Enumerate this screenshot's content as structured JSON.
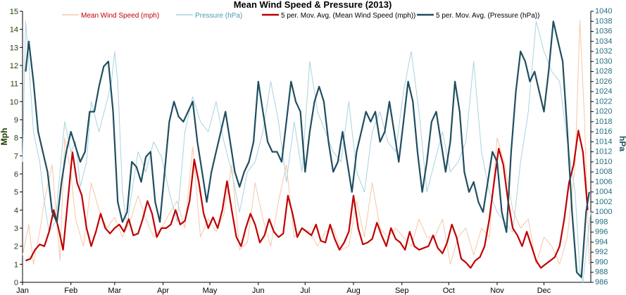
{
  "chart_data": {
    "type": "line",
    "title": "Mean Wind Speed & Pressure (2013)",
    "ylabel": "Mph",
    "y2label": "hPa",
    "ylim": [
      0,
      15
    ],
    "y2lim": [
      986,
      1040
    ],
    "yticks": [
      "0",
      "1",
      "2",
      "3",
      "4",
      "5",
      "6",
      "7",
      "8",
      "9",
      "10",
      "11",
      "12",
      "13",
      "14",
      "15"
    ],
    "y2ticks": [
      "986",
      "988",
      "990",
      "992",
      "994",
      "996",
      "998",
      "1000",
      "1002",
      "1004",
      "1006",
      "1008",
      "1010",
      "1012",
      "1014",
      "1016",
      "1018",
      "1020",
      "1022",
      "1024",
      "1026",
      "1028",
      "1030",
      "1032",
      "1034",
      "1036",
      "1038",
      "1040"
    ],
    "x_domain": [
      1,
      365
    ],
    "xticks": [
      {
        "label": "Jan",
        "day": 1
      },
      {
        "label": "Feb",
        "day": 32
      },
      {
        "label": "Mar",
        "day": 60
      },
      {
        "label": "Apr",
        "day": 91
      },
      {
        "label": "May",
        "day": 121
      },
      {
        "label": "Jun",
        "day": 152
      },
      {
        "label": "Jul",
        "day": 182
      },
      {
        "label": "Aug",
        "day": 213
      },
      {
        "label": "Sep",
        "day": 244
      },
      {
        "label": "Oct",
        "day": 274
      },
      {
        "label": "Nov",
        "day": 305
      },
      {
        "label": "Dec",
        "day": 335
      }
    ],
    "legend_position": "top",
    "series": [
      {
        "name": "Mean Wind Speed (mph)",
        "axis": "left",
        "color": "#f6c7a8",
        "x": [
          1,
          5,
          8,
          12,
          15,
          20,
          25,
          28,
          32,
          35,
          40,
          45,
          50,
          55,
          60,
          65,
          70,
          75,
          80,
          85,
          90,
          95,
          100,
          105,
          110,
          115,
          120,
          125,
          130,
          135,
          140,
          145,
          150,
          155,
          160,
          165,
          170,
          175,
          180,
          185,
          190,
          195,
          200,
          205,
          210,
          215,
          220,
          225,
          230,
          235,
          240,
          245,
          250,
          255,
          260,
          265,
          270,
          275,
          280,
          285,
          290,
          295,
          300,
          305,
          310,
          315,
          320,
          325,
          330,
          335,
          340,
          345,
          350,
          355,
          358,
          361,
          364
        ],
        "values": [
          1.5,
          3.2,
          1.0,
          2.8,
          4.5,
          6.5,
          1.2,
          8.0,
          6.0,
          3.5,
          2.0,
          5.5,
          4.0,
          3.0,
          3.6,
          2.5,
          3.4,
          4.8,
          3.5,
          2.5,
          3.0,
          3.8,
          4.5,
          3.0,
          7.5,
          2.5,
          3.5,
          2.8,
          3.8,
          6.5,
          1.8,
          2.2,
          5.5,
          3.5,
          2.0,
          4.5,
          6.5,
          2.5,
          3.0,
          2.8,
          2.0,
          2.8,
          3.0,
          1.8,
          2.0,
          4.5,
          2.5,
          5.5,
          3.0,
          2.5,
          3.0,
          2.5,
          2.0,
          3.5,
          2.5,
          2.5,
          3.5,
          1.0,
          2.5,
          3.0,
          1.5,
          3.0,
          2.5,
          8.0,
          6.5,
          4.0,
          3.0,
          3.5,
          1.0,
          2.5,
          2.0,
          1.0,
          2.5,
          6.5,
          14.5,
          9.0,
          1.0
        ]
      },
      {
        "name": "Pressure (hPa)",
        "axis": "right",
        "color": "#a9d3e0",
        "x": [
          1,
          3,
          5,
          8,
          12,
          15,
          18,
          22,
          25,
          28,
          32,
          35,
          38,
          42,
          45,
          50,
          55,
          58,
          60,
          62,
          65,
          68,
          70,
          75,
          80,
          85,
          90,
          95,
          100,
          105,
          110,
          115,
          120,
          125,
          130,
          135,
          140,
          145,
          150,
          155,
          160,
          165,
          170,
          175,
          180,
          185,
          190,
          195,
          200,
          205,
          210,
          215,
          220,
          225,
          230,
          235,
          240,
          245,
          250,
          255,
          260,
          265,
          270,
          275,
          280,
          285,
          290,
          295,
          300,
          305,
          310,
          315,
          320,
          325,
          330,
          335,
          340,
          345,
          350,
          355,
          358,
          360,
          362,
          365
        ],
        "values": [
          1010,
          1038,
          1030,
          1016,
          1010,
          1002,
          996,
          998,
          1008,
          1018,
          1012,
          1014,
          1005,
          1010,
          1022,
          1016,
          1022,
          1026,
          1032,
          1026,
          1004,
          997,
          1002,
          1012,
          1008,
          1014,
          1011,
          1004,
          998,
          1016,
          1023,
          1018,
          1016,
          1022,
          1014,
          1008,
          1000,
          1008,
          1010,
          1016,
          1026,
          1018,
          1006,
          1018,
          1008,
          1030,
          1020,
          1016,
          1012,
          1010,
          1022,
          1008,
          1004,
          1016,
          1020,
          1014,
          1012,
          1024,
          1032,
          1020,
          1004,
          1010,
          1016,
          1008,
          1010,
          1014,
          1030,
          1012,
          1004,
          1000,
          998,
          996,
          1010,
          1020,
          1038,
          1032,
          1028,
          1026,
          1014,
          1004,
          988,
          986,
          992,
          1000
        ]
      },
      {
        "name": "5 per. Mov. Avg. (Mean Wind Speed (mph))",
        "axis": "left",
        "color": "#c00000",
        "x": [
          3,
          6,
          9,
          12,
          15,
          18,
          21,
          24,
          27,
          30,
          33,
          36,
          39,
          42,
          45,
          48,
          51,
          54,
          57,
          60,
          63,
          66,
          69,
          72,
          75,
          78,
          81,
          84,
          87,
          90,
          93,
          96,
          99,
          102,
          105,
          108,
          111,
          114,
          117,
          120,
          123,
          126,
          129,
          132,
          135,
          138,
          141,
          144,
          147,
          150,
          153,
          156,
          159,
          162,
          165,
          168,
          171,
          174,
          177,
          180,
          183,
          186,
          189,
          192,
          195,
          198,
          201,
          204,
          207,
          210,
          213,
          216,
          219,
          222,
          225,
          228,
          231,
          234,
          237,
          240,
          243,
          246,
          249,
          252,
          255,
          258,
          261,
          264,
          267,
          270,
          273,
          276,
          279,
          282,
          285,
          288,
          291,
          294,
          297,
          300,
          303,
          306,
          309,
          312,
          315,
          318,
          321,
          324,
          327,
          330,
          333,
          336,
          339,
          342,
          345,
          348,
          351,
          354,
          357,
          360,
          363
        ],
        "values": [
          1.2,
          1.3,
          1.8,
          2.1,
          2.0,
          2.8,
          4.0,
          3.0,
          1.8,
          4.5,
          7.2,
          5.5,
          4.8,
          3.0,
          2.0,
          2.8,
          3.8,
          3.0,
          2.7,
          3.0,
          3.2,
          2.8,
          3.5,
          2.6,
          2.7,
          3.5,
          4.5,
          3.8,
          2.5,
          3.0,
          3.0,
          3.2,
          4.0,
          3.2,
          3.4,
          4.5,
          6.8,
          5.5,
          3.8,
          3.0,
          3.6,
          3.0,
          4.0,
          5.6,
          4.0,
          2.5,
          2.0,
          3.0,
          3.8,
          3.2,
          2.2,
          2.6,
          3.5,
          2.8,
          2.5,
          2.7,
          4.8,
          3.8,
          2.5,
          3.0,
          2.8,
          2.6,
          3.2,
          2.3,
          2.2,
          3.2,
          2.4,
          1.8,
          2.2,
          2.8,
          4.8,
          3.0,
          2.1,
          2.2,
          2.4,
          3.3,
          2.6,
          2.0,
          3.0,
          2.4,
          2.2,
          1.8,
          2.8,
          2.0,
          1.8,
          1.9,
          2.0,
          2.6,
          1.9,
          1.6,
          2.2,
          3.2,
          2.5,
          1.3,
          1.1,
          0.8,
          1.2,
          1.4,
          2.0,
          3.5,
          5.5,
          7.4,
          6.5,
          4.5,
          3.0,
          2.6,
          2.0,
          2.8,
          2.0,
          1.2,
          0.8,
          1.0,
          1.2,
          1.4,
          2.0,
          3.5,
          5.5,
          6.5,
          8.4,
          7.2,
          4.0
        ]
      },
      {
        "name": "5 per. Mov. Avg. (Pressure (hPa))",
        "axis": "right",
        "color": "#1f4e5f",
        "x": [
          3,
          5,
          8,
          11,
          14,
          17,
          20,
          23,
          26,
          29,
          32,
          35,
          38,
          41,
          44,
          47,
          50,
          53,
          56,
          59,
          62,
          65,
          68,
          71,
          74,
          77,
          80,
          83,
          86,
          89,
          92,
          95,
          98,
          101,
          104,
          107,
          110,
          113,
          116,
          119,
          122,
          125,
          128,
          131,
          134,
          137,
          140,
          143,
          146,
          149,
          152,
          155,
          158,
          161,
          164,
          167,
          170,
          173,
          176,
          179,
          182,
          185,
          188,
          191,
          194,
          197,
          200,
          203,
          206,
          209,
          212,
          215,
          218,
          221,
          224,
          227,
          230,
          233,
          236,
          239,
          242,
          245,
          248,
          251,
          254,
          257,
          260,
          263,
          266,
          269,
          272,
          275,
          278,
          281,
          284,
          287,
          290,
          293,
          296,
          299,
          302,
          305,
          308,
          311,
          314,
          317,
          320,
          323,
          326,
          329,
          332,
          335,
          338,
          341,
          344,
          347,
          350,
          353,
          356,
          359,
          362,
          364
        ],
        "values": [
          1028,
          1034,
          1026,
          1016,
          1012,
          1008,
          1000,
          998,
          1006,
          1012,
          1016,
          1013,
          1010,
          1012,
          1020,
          1020,
          1025,
          1029,
          1030,
          1020,
          1002,
          998,
          1000,
          1010,
          1009,
          1006,
          1011,
          1012,
          1002,
          998,
          1008,
          1018,
          1022,
          1019,
          1018,
          1020,
          1022,
          1014,
          1008,
          1002,
          1008,
          1012,
          1016,
          1020,
          1014,
          1008,
          1005,
          1008,
          1010,
          1014,
          1026,
          1020,
          1014,
          1012,
          1012,
          1010,
          1018,
          1026,
          1022,
          1020,
          1008,
          1016,
          1022,
          1025,
          1022,
          1014,
          1008,
          1010,
          1016,
          1010,
          1004,
          1012,
          1016,
          1020,
          1018,
          1020,
          1014,
          1016,
          1022,
          1016,
          1010,
          1018,
          1026,
          1022,
          1012,
          1004,
          1010,
          1018,
          1020,
          1014,
          1008,
          1014,
          1026,
          1020,
          1008,
          1004,
          1006,
          1002,
          1000,
          1006,
          1012,
          1010,
          1000,
          996,
          1012,
          1024,
          1032,
          1030,
          1026,
          1028,
          1024,
          1020,
          1028,
          1038,
          1034,
          1030,
          1016,
          1000,
          988,
          987,
          1000,
          1004
        ]
      }
    ]
  }
}
